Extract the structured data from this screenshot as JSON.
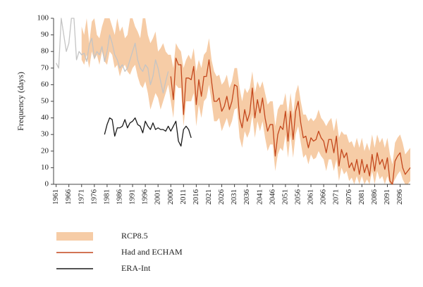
{
  "chart_data": {
    "type": "line",
    "ylabel": "Frequency (days)",
    "xlim": [
      1960,
      2100
    ],
    "ylim": [
      0,
      100
    ],
    "yticks": [
      0,
      10,
      20,
      30,
      40,
      50,
      60,
      70,
      80,
      90,
      100
    ],
    "xticks": [
      1961,
      1966,
      1971,
      1976,
      1981,
      1986,
      1991,
      1996,
      2001,
      2006,
      2011,
      2016,
      2021,
      2026,
      2031,
      2036,
      2041,
      2046,
      2051,
      2056,
      2061,
      2066,
      2071,
      2076,
      2081,
      2086,
      2091,
      2096
    ],
    "legend": "bottom",
    "series": [
      {
        "name": "RCP8.5",
        "type": "band",
        "color": "#f6cca6",
        "x": [
          1971,
          1972,
          1973,
          1974,
          1975,
          1976,
          1977,
          1978,
          1979,
          1980,
          1981,
          1982,
          1983,
          1984,
          1985,
          1986,
          1987,
          1988,
          1989,
          1990,
          1991,
          1992,
          1993,
          1994,
          1995,
          1996,
          1997,
          1998,
          1999,
          2000,
          2001,
          2002,
          2003,
          2004,
          2005,
          2006,
          2007,
          2008,
          2009,
          2010,
          2011,
          2012,
          2013,
          2014,
          2015,
          2016,
          2017,
          2018,
          2019,
          2020,
          2021,
          2022,
          2023,
          2024,
          2025,
          2026,
          2027,
          2028,
          2029,
          2030,
          2031,
          2032,
          2033,
          2034,
          2035,
          2036,
          2037,
          2038,
          2039,
          2040,
          2041,
          2042,
          2043,
          2044,
          2045,
          2046,
          2047,
          2048,
          2049,
          2050,
          2051,
          2052,
          2053,
          2054,
          2055,
          2056,
          2057,
          2058,
          2059,
          2060,
          2061,
          2062,
          2063,
          2064,
          2065,
          2066,
          2067,
          2068,
          2069,
          2070,
          2071,
          2072,
          2073,
          2074,
          2075,
          2076,
          2077,
          2078,
          2079,
          2080,
          2081,
          2082,
          2083,
          2084,
          2085,
          2086,
          2087,
          2088,
          2089,
          2090,
          2091,
          2092,
          2093,
          2094,
          2095,
          2096,
          2097,
          2098,
          2099,
          2100
        ],
        "high": [
          95,
          90,
          100,
          85,
          98,
          100,
          90,
          88,
          95,
          100,
          100,
          100,
          95,
          90,
          100,
          92,
          95,
          88,
          90,
          100,
          100,
          95,
          92,
          88,
          100,
          100,
          90,
          85,
          88,
          92,
          80,
          82,
          85,
          80,
          78,
          78,
          70,
          85,
          82,
          80,
          70,
          75,
          78,
          75,
          82,
          68,
          75,
          70,
          78,
          80,
          88,
          75,
          68,
          65,
          66,
          60,
          62,
          66,
          58,
          62,
          70,
          70,
          58,
          50,
          58,
          55,
          58,
          68,
          55,
          62,
          58,
          62,
          55,
          48,
          50,
          50,
          35,
          45,
          48,
          48,
          55,
          42,
          55,
          42,
          55,
          60,
          50,
          42,
          42,
          38,
          40,
          38,
          40,
          45,
          40,
          38,
          35,
          38,
          40,
          32,
          40,
          28,
          32,
          30,
          30,
          25,
          26,
          22,
          28,
          22,
          28,
          20,
          25,
          20,
          30,
          22,
          30,
          25,
          28,
          22,
          28,
          18,
          12,
          25,
          28,
          30,
          25,
          18,
          20,
          22
        ],
        "low": [
          75,
          72,
          78,
          70,
          80,
          75,
          78,
          72,
          80,
          74,
          72,
          80,
          78,
          70,
          72,
          65,
          70,
          72,
          68,
          66,
          70,
          72,
          65,
          60,
          58,
          62,
          55,
          45,
          50,
          55,
          52,
          45,
          50,
          55,
          60,
          50,
          40,
          60,
          58,
          58,
          35,
          50,
          50,
          50,
          55,
          35,
          48,
          40,
          50,
          52,
          60,
          50,
          38,
          38,
          40,
          32,
          36,
          40,
          34,
          38,
          45,
          46,
          28,
          22,
          32,
          28,
          32,
          42,
          28,
          38,
          32,
          38,
          28,
          20,
          24,
          24,
          8,
          18,
          22,
          20,
          30,
          16,
          30,
          16,
          30,
          35,
          25,
          16,
          18,
          12,
          18,
          15,
          16,
          20,
          17,
          15,
          8,
          15,
          15,
          8,
          15,
          2,
          10,
          6,
          8,
          2,
          4,
          0,
          5,
          0,
          5,
          0,
          3,
          0,
          8,
          0,
          8,
          3,
          5,
          0,
          5,
          0,
          0,
          3,
          6,
          8,
          3,
          0,
          0,
          2
        ]
      },
      {
        "name": "Had and ECHAM",
        "color": "#c4471c",
        "x": [
          2006,
          2007,
          2008,
          2009,
          2010,
          2011,
          2012,
          2013,
          2014,
          2015,
          2016,
          2017,
          2018,
          2019,
          2020,
          2021,
          2022,
          2023,
          2024,
          2025,
          2026,
          2027,
          2028,
          2029,
          2030,
          2031,
          2032,
          2033,
          2034,
          2035,
          2036,
          2037,
          2038,
          2039,
          2040,
          2041,
          2042,
          2043,
          2044,
          2045,
          2046,
          2047,
          2048,
          2049,
          2050,
          2051,
          2052,
          2053,
          2054,
          2055,
          2056,
          2057,
          2058,
          2059,
          2060,
          2061,
          2062,
          2063,
          2064,
          2065,
          2066,
          2067,
          2068,
          2069,
          2070,
          2071,
          2072,
          2073,
          2074,
          2075,
          2076,
          2077,
          2078,
          2079,
          2080,
          2081,
          2082,
          2083,
          2084,
          2085,
          2086,
          2087,
          2088,
          2089,
          2090,
          2091,
          2092,
          2093,
          2094,
          2095,
          2096,
          2097,
          2098,
          2099,
          2100
        ],
        "values": [
          65,
          51,
          76,
          72,
          72,
          42,
          64,
          64,
          63,
          71,
          48,
          63,
          53,
          65,
          65,
          75,
          62,
          50,
          50,
          52,
          44,
          47,
          53,
          45,
          50,
          60,
          59,
          40,
          34,
          45,
          38,
          43,
          58,
          40,
          51,
          43,
          52,
          40,
          32,
          36,
          36,
          17,
          30,
          35,
          33,
          44,
          26,
          44,
          27,
          44,
          50,
          37,
          28,
          29,
          22,
          28,
          26,
          27,
          32,
          28,
          26,
          19,
          27,
          27,
          19,
          29,
          11,
          21,
          16,
          19,
          10,
          13,
          8,
          15,
          6,
          15,
          7,
          12,
          5,
          18,
          8,
          19,
          12,
          15,
          9,
          16,
          2,
          0,
          14,
          17,
          19,
          10,
          6,
          8,
          10
        ]
      },
      {
        "color": "#c4c4c4",
        "x": [
          1961,
          1962,
          1963,
          1964,
          1965,
          1966,
          1967,
          1968,
          1969,
          1970,
          1971,
          1972,
          1973,
          1974,
          1975,
          1976,
          1977,
          1978,
          1979,
          1980,
          1981,
          1982,
          1983,
          1984,
          1985,
          1986,
          1987,
          1988,
          1989,
          1990,
          1991,
          1992,
          1993,
          1994,
          1995,
          1996,
          1997,
          1998,
          1999,
          2000,
          2001,
          2002,
          2003,
          2004,
          2005
        ],
        "values": [
          73,
          70,
          100,
          90,
          80,
          85,
          100,
          100,
          75,
          80,
          78,
          79,
          74,
          84,
          88,
          76,
          80,
          78,
          83,
          74,
          80,
          90,
          85,
          78,
          75,
          70,
          72,
          68,
          70,
          75,
          80,
          85,
          75,
          70,
          68,
          72,
          70,
          60,
          65,
          75,
          70,
          62,
          55,
          62,
          68
        ]
      },
      {
        "name": "ERA-Int",
        "color": "#1a1a1a",
        "x": [
          1980,
          1981,
          1982,
          1983,
          1984,
          1985,
          1986,
          1987,
          1988,
          1989,
          1990,
          1991,
          1992,
          1993,
          1994,
          1995,
          1996,
          1997,
          1998,
          1999,
          2000,
          2001,
          2002,
          2003,
          2004,
          2005,
          2006,
          2007,
          2008,
          2009,
          2010,
          2011,
          2012,
          2013,
          2014
        ],
        "values": [
          30,
          36,
          40,
          39,
          29,
          34,
          34,
          35,
          39,
          34,
          37,
          38,
          40,
          36,
          35,
          31,
          38,
          35,
          33,
          37,
          33,
          34,
          33,
          33,
          32,
          35,
          32,
          35,
          38,
          26,
          23,
          33,
          35,
          33,
          28
        ]
      }
    ]
  }
}
